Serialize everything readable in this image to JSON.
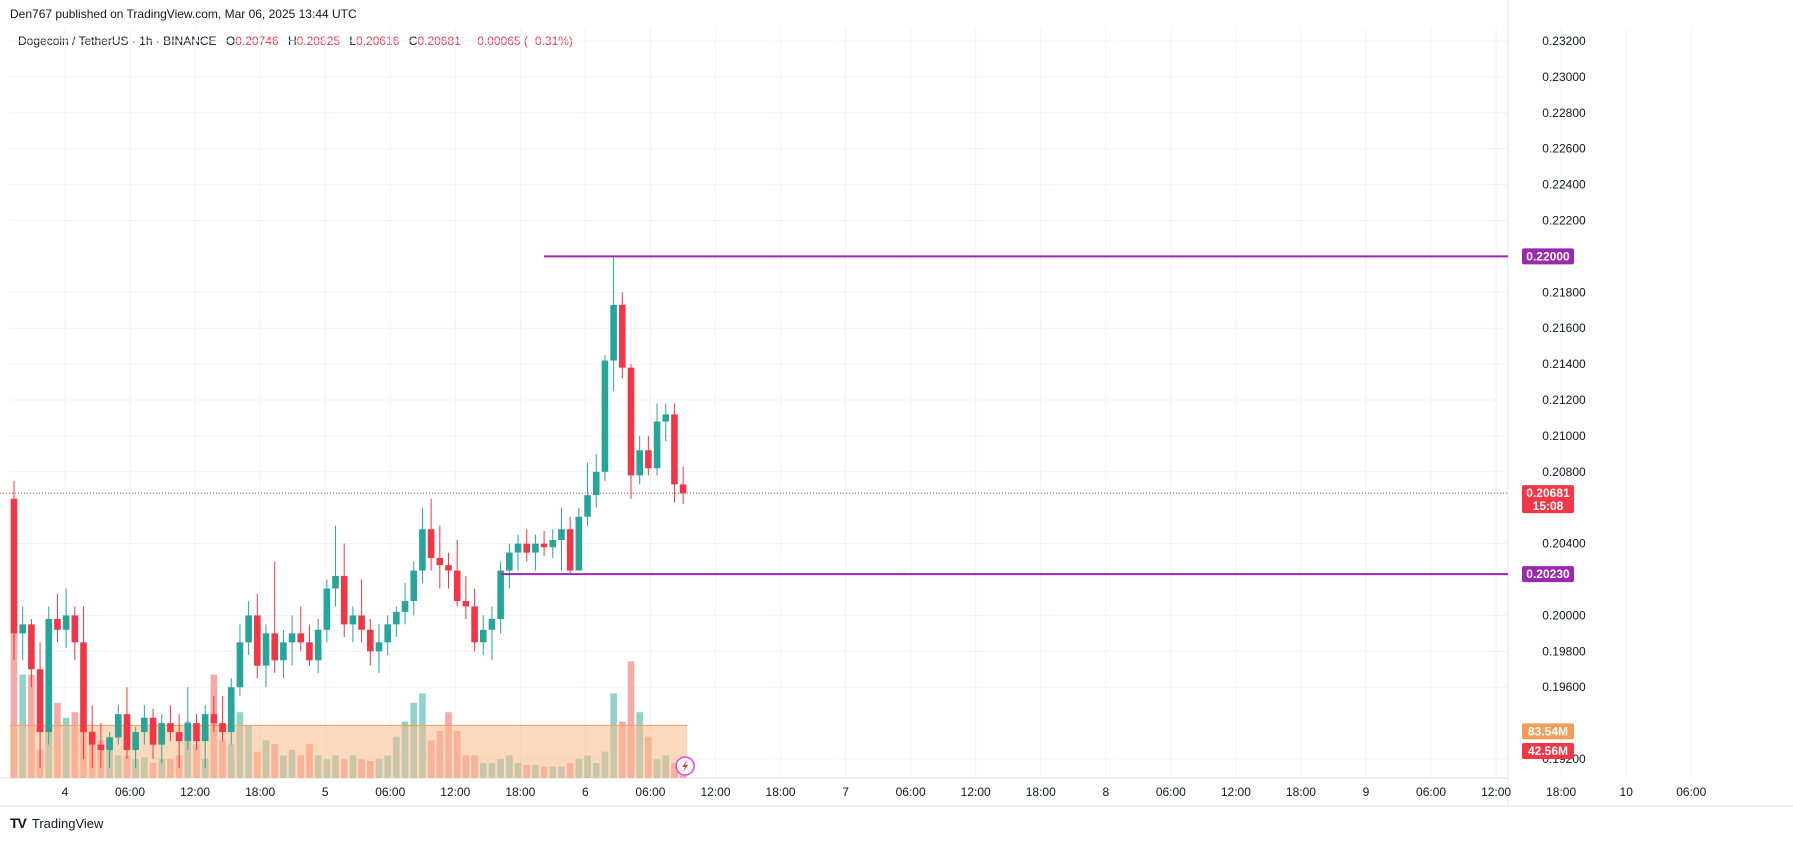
{
  "header": {
    "published": "Den767 published on TradingView.com, Mar 06, 2025 13:44 UTC"
  },
  "legend": {
    "symbol": "Dogecoin / TetherUS · 1h · BINANCE",
    "open_label": "O",
    "open": "0.20746",
    "high_label": "H",
    "high": "0.20825",
    "low_label": "L",
    "low": "0.20616",
    "close_label": "C",
    "close": "0.20681",
    "change": "−0.00065 (−0.31%)"
  },
  "footer": {
    "brand": "TradingView",
    "logo_icon": "tradingview-logo-icon"
  },
  "colors": {
    "up": "#26a69a",
    "down": "#f23645",
    "level": "#9c27b0",
    "grid": "#f0f3fa",
    "axis_text": "#131722",
    "vol_up": "#8fd3cc",
    "vol_down": "#f7a9a7",
    "vol_ma": "#f7b98b"
  },
  "chart_data": {
    "type": "candlestick",
    "symbol": "DOGEUSDT",
    "interval": "1h",
    "exchange": "BINANCE",
    "y_axis": {
      "ticks": [
        "0.23200",
        "0.23000",
        "0.22800",
        "0.22600",
        "0.22400",
        "0.22200",
        "0.21800",
        "0.21600",
        "0.21400",
        "0.21200",
        "0.21000",
        "0.20800",
        "0.20400",
        "0.20000",
        "0.19800",
        "0.19600",
        "0.19200"
      ],
      "ylim": [
        0.1915,
        0.2325
      ]
    },
    "x_axis": {
      "ticks": [
        "4",
        "06:00",
        "12:00",
        "18:00",
        "5",
        "06:00",
        "12:00",
        "18:00",
        "6",
        "06:00",
        "12:00",
        "18:00",
        "7",
        "06:00",
        "12:00",
        "18:00",
        "8",
        "06:00",
        "12:00",
        "18:00",
        "9",
        "06:00",
        "12:00",
        "18:00",
        "10",
        "06:00"
      ]
    },
    "price_labels": {
      "level_top": "0.22000",
      "last_price": "0.20681",
      "countdown": "15:08",
      "level_bottom": "0.20230",
      "volume_ma": "83.54M",
      "volume": "42.56M"
    },
    "levels": [
      {
        "price": 0.22,
        "start_candle": 61
      },
      {
        "price": 0.2023,
        "start_candle": 56
      }
    ],
    "last_price": 0.20681,
    "candles": [
      [
        0.2065,
        0.2075,
        0.1975,
        0.199
      ],
      [
        0.199,
        0.2005,
        0.1975,
        0.1995
      ],
      [
        0.1995,
        0.1998,
        0.196,
        0.197
      ],
      [
        0.197,
        0.1985,
        0.1915,
        0.1935
      ],
      [
        0.1935,
        0.2005,
        0.1928,
        0.1998
      ],
      [
        0.1998,
        0.2012,
        0.1985,
        0.1992
      ],
      [
        0.1992,
        0.2015,
        0.1982,
        0.2
      ],
      [
        0.2,
        0.2005,
        0.1975,
        0.1985
      ],
      [
        0.1985,
        0.2005,
        0.192,
        0.1935
      ],
      [
        0.1935,
        0.195,
        0.1915,
        0.1928
      ],
      [
        0.1928,
        0.194,
        0.1915,
        0.1925
      ],
      [
        0.1925,
        0.1935,
        0.1915,
        0.1932
      ],
      [
        0.1932,
        0.195,
        0.1928,
        0.1945
      ],
      [
        0.1945,
        0.196,
        0.192,
        0.1925
      ],
      [
        0.1925,
        0.1938,
        0.1915,
        0.1935
      ],
      [
        0.1935,
        0.195,
        0.1928,
        0.1943
      ],
      [
        0.1943,
        0.1948,
        0.192,
        0.1928
      ],
      [
        0.1928,
        0.1945,
        0.1918,
        0.194
      ],
      [
        0.194,
        0.195,
        0.193,
        0.1935
      ],
      [
        0.1935,
        0.1945,
        0.1915,
        0.193
      ],
      [
        0.193,
        0.196,
        0.1925,
        0.194
      ],
      [
        0.194,
        0.1945,
        0.1925,
        0.193
      ],
      [
        0.193,
        0.195,
        0.1915,
        0.1945
      ],
      [
        0.1945,
        0.1955,
        0.1935,
        0.194
      ],
      [
        0.194,
        0.1955,
        0.193,
        0.1935
      ],
      [
        0.1935,
        0.1965,
        0.1928,
        0.196
      ],
      [
        0.196,
        0.1995,
        0.1955,
        0.1985
      ],
      [
        0.1985,
        0.2008,
        0.1978,
        0.2
      ],
      [
        0.2,
        0.2012,
        0.1965,
        0.1972
      ],
      [
        0.1972,
        0.1995,
        0.196,
        0.199
      ],
      [
        0.199,
        0.203,
        0.1968,
        0.1975
      ],
      [
        0.1975,
        0.1992,
        0.1965,
        0.1985
      ],
      [
        0.1985,
        0.2,
        0.1972,
        0.199
      ],
      [
        0.199,
        0.2005,
        0.198,
        0.1985
      ],
      [
        0.1985,
        0.1995,
        0.1972,
        0.1975
      ],
      [
        0.1975,
        0.1998,
        0.1968,
        0.1992
      ],
      [
        0.1992,
        0.202,
        0.1985,
        0.2015
      ],
      [
        0.2015,
        0.205,
        0.2005,
        0.2022
      ],
      [
        0.2022,
        0.204,
        0.1988,
        0.1995
      ],
      [
        0.1995,
        0.2005,
        0.1985,
        0.2
      ],
      [
        0.2,
        0.202,
        0.1985,
        0.1992
      ],
      [
        0.1992,
        0.1998,
        0.1972,
        0.198
      ],
      [
        0.198,
        0.1995,
        0.1968,
        0.1985
      ],
      [
        0.1985,
        0.2,
        0.1978,
        0.1995
      ],
      [
        0.1995,
        0.2005,
        0.1988,
        0.2002
      ],
      [
        0.2002,
        0.2018,
        0.1995,
        0.2008
      ],
      [
        0.2008,
        0.203,
        0.2,
        0.2025
      ],
      [
        0.2025,
        0.206,
        0.2018,
        0.2048
      ],
      [
        0.2048,
        0.2065,
        0.2025,
        0.2032
      ],
      [
        0.2032,
        0.205,
        0.2015,
        0.2028
      ],
      [
        0.2028,
        0.2035,
        0.2015,
        0.2025
      ],
      [
        0.2025,
        0.2042,
        0.2005,
        0.2008
      ],
      [
        0.2008,
        0.2022,
        0.1998,
        0.2005
      ],
      [
        0.2005,
        0.2015,
        0.198,
        0.1985
      ],
      [
        0.1985,
        0.2,
        0.1978,
        0.1992
      ],
      [
        0.1992,
        0.2005,
        0.1975,
        0.1998
      ],
      [
        0.1998,
        0.203,
        0.199,
        0.2025
      ],
      [
        0.2025,
        0.204,
        0.2015,
        0.2035
      ],
      [
        0.2035,
        0.2045,
        0.2025,
        0.204
      ],
      [
        0.204,
        0.2048,
        0.203,
        0.2035
      ],
      [
        0.2035,
        0.2045,
        0.2025,
        0.204
      ],
      [
        0.204,
        0.2047,
        0.2033,
        0.2038
      ],
      [
        0.2038,
        0.2048,
        0.2032,
        0.2042
      ],
      [
        0.2042,
        0.206,
        0.2025,
        0.2048
      ],
      [
        0.2048,
        0.2055,
        0.2023,
        0.2025
      ],
      [
        0.2025,
        0.206,
        0.2025,
        0.2055
      ],
      [
        0.2055,
        0.2085,
        0.205,
        0.2067
      ],
      [
        0.2067,
        0.209,
        0.206,
        0.208
      ],
      [
        0.208,
        0.2145,
        0.2075,
        0.2142
      ],
      [
        0.2142,
        0.22,
        0.2125,
        0.2173
      ],
      [
        0.2173,
        0.218,
        0.2132,
        0.2138
      ],
      [
        0.2138,
        0.214,
        0.2065,
        0.2078
      ],
      [
        0.2078,
        0.21,
        0.2073,
        0.2092
      ],
      [
        0.2092,
        0.21,
        0.2078,
        0.2082
      ],
      [
        0.2082,
        0.2118,
        0.2078,
        0.2108
      ],
      [
        0.2108,
        0.2118,
        0.2097,
        0.2112
      ],
      [
        0.2112,
        0.2118,
        0.2063,
        0.2073
      ],
      [
        0.2073,
        0.2083,
        0.2062,
        0.2068
      ]
    ],
    "volumes": [
      0.85,
      0.55,
      0.55,
      0.15,
      0.5,
      0.4,
      0.32,
      0.35,
      0.65,
      0.25,
      0.2,
      0.22,
      0.12,
      0.12,
      0.1,
      0.11,
      0.08,
      0.1,
      0.1,
      0.12,
      0.3,
      0.18,
      0.1,
      0.55,
      0.2,
      0.18,
      0.35,
      0.28,
      0.14,
      0.2,
      0.18,
      0.12,
      0.15,
      0.12,
      0.18,
      0.12,
      0.1,
      0.12,
      0.1,
      0.12,
      0.1,
      0.09,
      0.1,
      0.12,
      0.22,
      0.3,
      0.4,
      0.45,
      0.2,
      0.25,
      0.35,
      0.25,
      0.12,
      0.12,
      0.08,
      0.08,
      0.1,
      0.12,
      0.08,
      0.07,
      0.07,
      0.06,
      0.06,
      0.06,
      0.08,
      0.1,
      0.12,
      0.08,
      0.14,
      0.45,
      0.3,
      0.62,
      0.35,
      0.22,
      0.1,
      0.12,
      0.08,
      0.1
    ],
    "volume_ma": 0.28,
    "volume_ylim": [
      0,
      1
    ]
  }
}
